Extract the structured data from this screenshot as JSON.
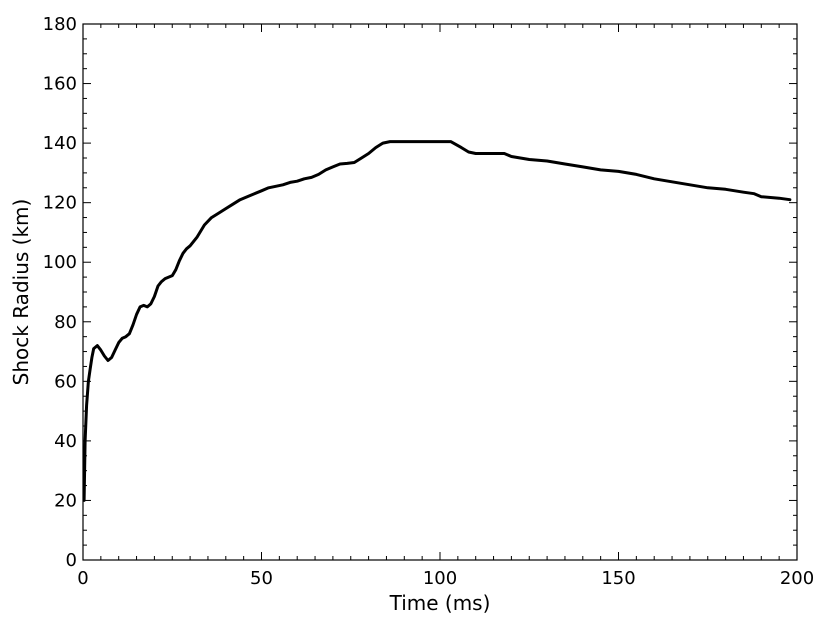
{
  "chart_data": {
    "type": "line",
    "title": "",
    "xlabel": "Time (ms)",
    "ylabel": "Shock Radius (km)",
    "xlim": [
      0,
      200
    ],
    "ylim": [
      0,
      180
    ],
    "xticks": [
      0,
      50,
      100,
      150,
      200
    ],
    "yticks": [
      0,
      20,
      40,
      60,
      80,
      100,
      120,
      140,
      160,
      180
    ],
    "xtick_labels": [
      "0",
      "50",
      "100",
      "150",
      "200"
    ],
    "ytick_labels": [
      "0",
      "20",
      "40",
      "60",
      "80",
      "100",
      "120",
      "140",
      "160",
      "180"
    ],
    "grid": false,
    "line_color": "#000000",
    "series": [
      {
        "x": [
          0.3,
          0.6,
          1,
          1.5,
          2,
          2.5,
          3,
          4,
          5,
          6,
          7,
          8,
          9,
          10,
          11,
          12,
          13,
          14,
          15,
          16,
          17,
          18,
          19,
          20,
          21,
          22,
          23,
          24,
          25,
          26,
          27,
          28,
          29,
          30,
          32,
          34,
          36,
          38,
          40,
          42,
          44,
          46,
          48,
          50,
          52,
          54,
          56,
          58,
          60,
          62,
          64,
          66,
          68,
          70,
          72,
          74,
          76,
          78,
          80,
          82,
          84,
          86,
          88,
          90,
          95,
          100,
          103,
          106,
          108,
          110,
          115,
          118,
          120,
          125,
          130,
          135,
          140,
          145,
          150,
          155,
          160,
          165,
          170,
          175,
          180,
          185,
          188,
          190,
          195,
          198
        ],
        "y": [
          20,
          40,
          52,
          60,
          64,
          68,
          71,
          72,
          70.5,
          68.5,
          67,
          68,
          70.5,
          73,
          74.5,
          75,
          76,
          79,
          82.5,
          85,
          85.5,
          85,
          86,
          88.5,
          92,
          93.5,
          94.5,
          95,
          95.5,
          97.5,
          100.5,
          103,
          104.5,
          105.5,
          108.5,
          112.5,
          115,
          116.5,
          118,
          119.5,
          121,
          122,
          123,
          124,
          125,
          125.5,
          126,
          126.8,
          127.2,
          128,
          128.5,
          129.5,
          131,
          132,
          133,
          133.2,
          133.5,
          135,
          136.5,
          138.5,
          140,
          140.5,
          140.5,
          140.5,
          140.5,
          140.5,
          140.5,
          138.5,
          137,
          136.5,
          136.5,
          136.5,
          135.5,
          134.5,
          134,
          133,
          132,
          131,
          130.5,
          129.5,
          128,
          127,
          126,
          125,
          124.5,
          123.5,
          123,
          122,
          121.5,
          121
        ]
      }
    ]
  }
}
